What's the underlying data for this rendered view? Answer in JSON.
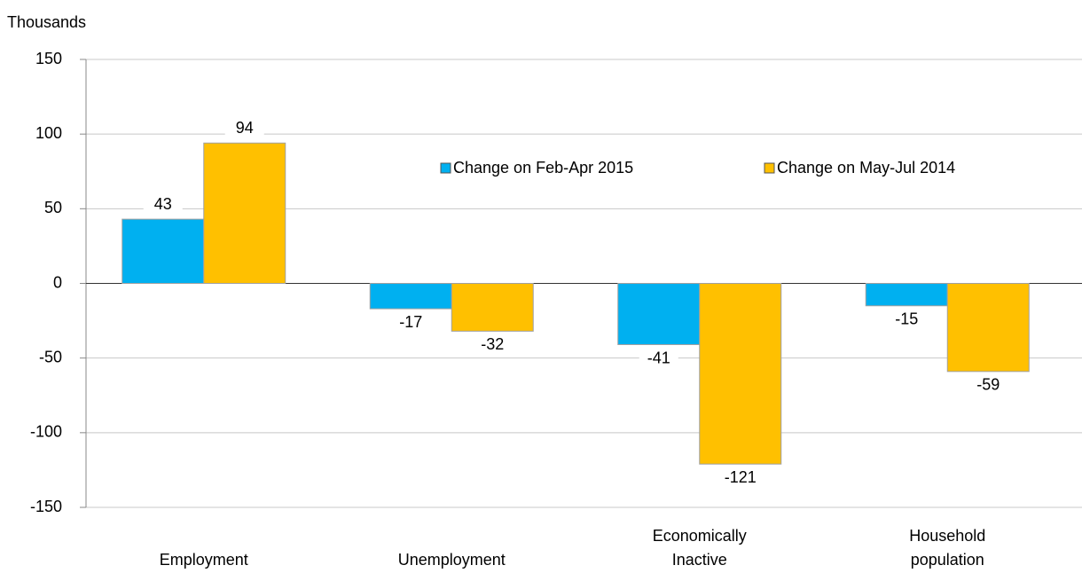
{
  "chart_data": {
    "type": "bar",
    "y_axis_label": "Thousands",
    "categories": [
      "Employment",
      "Unemployment",
      "Economically Inactive",
      "Household population"
    ],
    "series": [
      {
        "name": "Change on Feb-Apr 2015",
        "color": "#00b0f0",
        "values": [
          43,
          -17,
          -41,
          -15
        ]
      },
      {
        "name": "Change on May-Jul 2014",
        "color": "#ffc000",
        "values": [
          94,
          -32,
          -121,
          -59
        ]
      }
    ],
    "ylim": [
      -150,
      150
    ],
    "yticks": [
      -150,
      -100,
      -50,
      0,
      50,
      100,
      150
    ],
    "grid": true,
    "legend": "upper center"
  }
}
